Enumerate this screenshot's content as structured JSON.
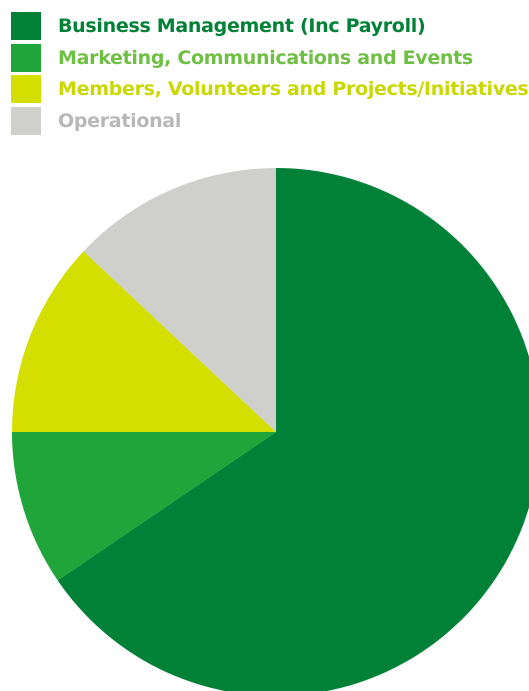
{
  "chart_data": {
    "type": "pie",
    "title": "",
    "legend_position": "top-left",
    "start_angle": "top, clockwise",
    "series": [
      {
        "name": "Business Management (Inc Payroll)",
        "value": 65.5,
        "color": "#008137",
        "label_color": "#008137"
      },
      {
        "name": "Marketing, Communications and Events",
        "value": 9.5,
        "color": "#1fa539",
        "label_color": "#70bf45"
      },
      {
        "name": "Members, Volunteers and Projects/Initiatives",
        "value": 12.0,
        "color": "#d4df00",
        "label_color": "#cbd800"
      },
      {
        "name": "Operational",
        "value": 13.0,
        "color": "#cfcfcb",
        "label_color": "#b8b8b8"
      }
    ]
  }
}
